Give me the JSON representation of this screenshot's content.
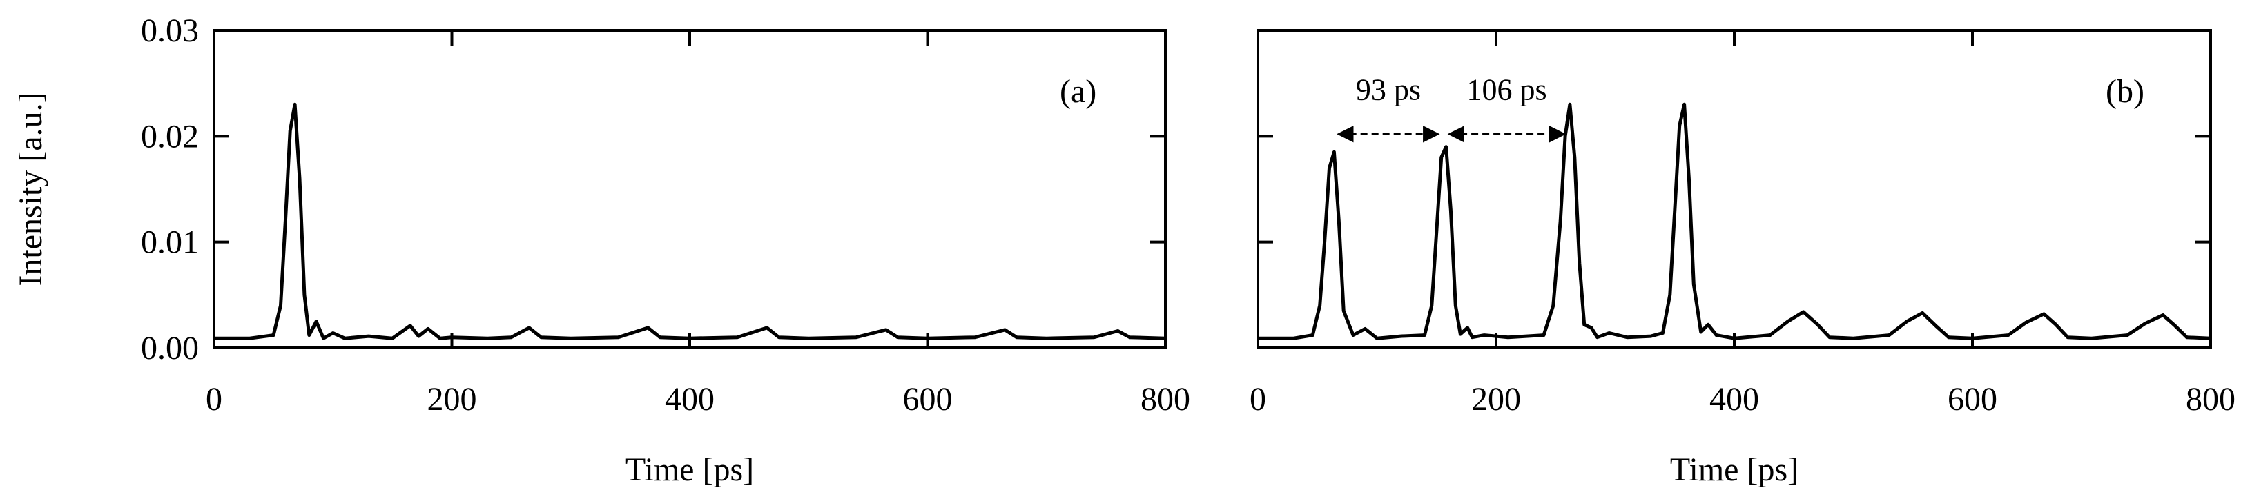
{
  "chart_data": [
    {
      "type": "line",
      "panel_label": "(a)",
      "xlabel": "Time [ps]",
      "ylabel": "Intensity [a.u.]",
      "xlim": [
        0,
        800
      ],
      "ylim": [
        0,
        0.03
      ],
      "x_ticks": [
        "0",
        "200",
        "400",
        "600",
        "800"
      ],
      "y_ticks": [
        "0.00",
        "0.01",
        "0.02",
        "0.03"
      ],
      "grid": false,
      "series": [
        {
          "color": "#000000",
          "x": [
            0,
            30,
            50,
            56,
            60,
            64,
            68,
            72,
            76,
            80,
            86,
            92,
            100,
            110,
            130,
            150,
            165,
            172,
            180,
            190,
            200,
            230,
            250,
            265,
            275,
            300,
            340,
            365,
            375,
            400,
            440,
            465,
            475,
            500,
            540,
            565,
            575,
            600,
            640,
            665,
            675,
            700,
            740,
            760,
            770,
            800
          ],
          "y": [
            0.0009,
            0.0009,
            0.0012,
            0.004,
            0.012,
            0.0205,
            0.023,
            0.016,
            0.005,
            0.0012,
            0.0025,
            0.0009,
            0.0014,
            0.0009,
            0.0011,
            0.0009,
            0.0021,
            0.0011,
            0.0018,
            0.0009,
            0.001,
            0.0009,
            0.001,
            0.0019,
            0.001,
            0.0009,
            0.001,
            0.0019,
            0.001,
            0.0009,
            0.001,
            0.0019,
            0.001,
            0.0009,
            0.001,
            0.0017,
            0.001,
            0.0009,
            0.001,
            0.0017,
            0.001,
            0.0009,
            0.001,
            0.0016,
            0.001,
            0.0009
          ]
        }
      ]
    },
    {
      "type": "line",
      "panel_label": "(b)",
      "xlabel": "Time [ps]",
      "ylabel": "",
      "xlim": [
        0,
        800
      ],
      "ylim": [
        0,
        0.03
      ],
      "x_ticks": [
        "0",
        "200",
        "400",
        "600",
        "800"
      ],
      "y_ticks": [],
      "grid": false,
      "series": [
        {
          "color": "#000000",
          "x": [
            0,
            30,
            46,
            52,
            56,
            60,
            64,
            68,
            72,
            80,
            90,
            100,
            120,
            140,
            146,
            150,
            154,
            158,
            162,
            166,
            170,
            176,
            180,
            190,
            210,
            240,
            248,
            254,
            258,
            262,
            266,
            270,
            274,
            280,
            285,
            295,
            310,
            330,
            340,
            346,
            350,
            354,
            358,
            362,
            366,
            372,
            378,
            385,
            400,
            430,
            445,
            458,
            470,
            480,
            500,
            530,
            545,
            558,
            570,
            580,
            600,
            630,
            645,
            660,
            670,
            680,
            700,
            730,
            745,
            760,
            770,
            780,
            800
          ],
          "y": [
            0.0009,
            0.0009,
            0.0012,
            0.004,
            0.01,
            0.017,
            0.0185,
            0.012,
            0.0035,
            0.0012,
            0.0018,
            0.0009,
            0.0011,
            0.0012,
            0.004,
            0.011,
            0.018,
            0.019,
            0.013,
            0.004,
            0.0013,
            0.0019,
            0.001,
            0.0012,
            0.001,
            0.0012,
            0.004,
            0.012,
            0.02,
            0.023,
            0.018,
            0.008,
            0.0022,
            0.0019,
            0.001,
            0.0014,
            0.001,
            0.0011,
            0.0014,
            0.005,
            0.013,
            0.021,
            0.023,
            0.016,
            0.006,
            0.0015,
            0.0022,
            0.0012,
            0.0009,
            0.0012,
            0.0025,
            0.0034,
            0.0022,
            0.001,
            0.0009,
            0.0012,
            0.0025,
            0.0033,
            0.002,
            0.001,
            0.0009,
            0.0012,
            0.0024,
            0.0032,
            0.0022,
            0.001,
            0.0009,
            0.0012,
            0.0023,
            0.0031,
            0.0021,
            0.001,
            0.0009
          ]
        }
      ],
      "annotations": [
        {
          "text": "93 ps",
          "from_x": 63,
          "to_x": 156,
          "y": 0.0202
        },
        {
          "text": "106 ps",
          "from_x": 156,
          "to_x": 262,
          "y": 0.0202
        }
      ]
    }
  ]
}
